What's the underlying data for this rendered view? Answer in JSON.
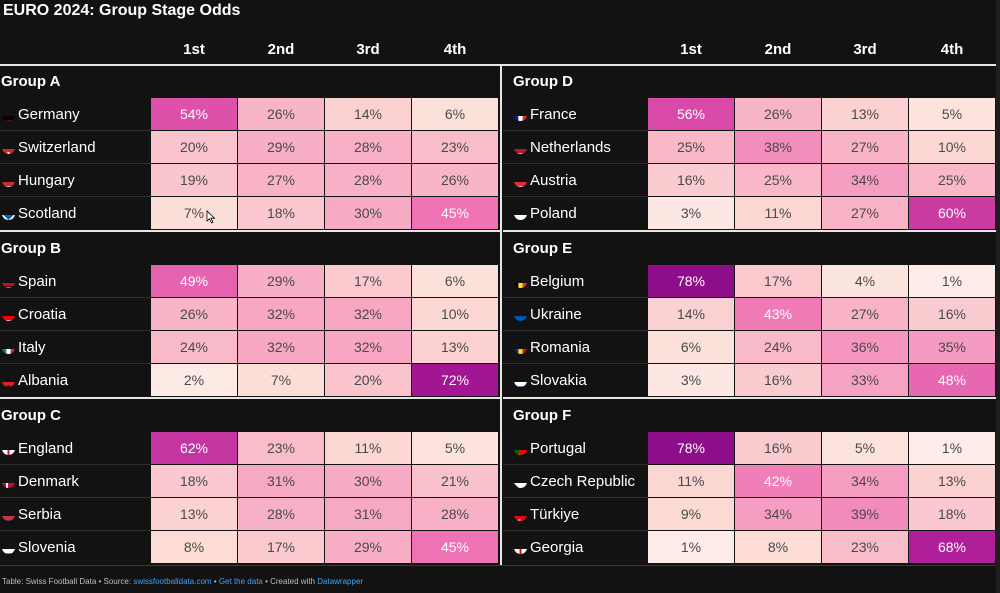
{
  "title": "EURO 2024: Group Stage Odds",
  "columns": [
    "1st",
    "2nd",
    "3rd",
    "4th"
  ],
  "footer": {
    "prefix": "Table: Swiss Football Data • Source: ",
    "source": "swissfootballdata.com",
    "sep1": " • ",
    "get_data": "Get the data",
    "sep2": " • Created with ",
    "tool": "Datawrapper"
  },
  "chart_data": {
    "type": "table",
    "title": "EURO 2024: Group Stage Odds",
    "value_unit": "%",
    "columns": [
      "1st",
      "2nd",
      "3rd",
      "4th"
    ],
    "groups": [
      {
        "name": "Group A",
        "rows": [
          {
            "country": "Germany",
            "values": [
              54,
              26,
              14,
              6
            ]
          },
          {
            "country": "Switzerland",
            "values": [
              20,
              29,
              28,
              23
            ]
          },
          {
            "country": "Hungary",
            "values": [
              19,
              27,
              28,
              26
            ]
          },
          {
            "country": "Scotland",
            "values": [
              7,
              18,
              30,
              45
            ]
          }
        ]
      },
      {
        "name": "Group B",
        "rows": [
          {
            "country": "Spain",
            "values": [
              49,
              29,
              17,
              6
            ]
          },
          {
            "country": "Croatia",
            "values": [
              26,
              32,
              32,
              10
            ]
          },
          {
            "country": "Italy",
            "values": [
              24,
              32,
              32,
              13
            ]
          },
          {
            "country": "Albania",
            "values": [
              2,
              7,
              20,
              72
            ]
          }
        ]
      },
      {
        "name": "Group C",
        "rows": [
          {
            "country": "England",
            "values": [
              62,
              23,
              11,
              5
            ]
          },
          {
            "country": "Denmark",
            "values": [
              18,
              31,
              30,
              21
            ]
          },
          {
            "country": "Serbia",
            "values": [
              13,
              28,
              31,
              28
            ]
          },
          {
            "country": "Slovenia",
            "values": [
              8,
              17,
              29,
              45
            ]
          }
        ]
      },
      {
        "name": "Group D",
        "rows": [
          {
            "country": "France",
            "values": [
              56,
              26,
              13,
              5
            ]
          },
          {
            "country": "Netherlands",
            "values": [
              25,
              38,
              27,
              10
            ]
          },
          {
            "country": "Austria",
            "values": [
              16,
              25,
              34,
              25
            ]
          },
          {
            "country": "Poland",
            "values": [
              3,
              11,
              27,
              60
            ]
          }
        ]
      },
      {
        "name": "Group E",
        "rows": [
          {
            "country": "Belgium",
            "values": [
              78,
              17,
              4,
              1
            ]
          },
          {
            "country": "Ukraine",
            "values": [
              14,
              43,
              27,
              16
            ]
          },
          {
            "country": "Romania",
            "values": [
              6,
              24,
              36,
              35
            ]
          },
          {
            "country": "Slovakia",
            "values": [
              3,
              16,
              33,
              48
            ]
          }
        ]
      },
      {
        "name": "Group F",
        "rows": [
          {
            "country": "Portugal",
            "values": [
              78,
              16,
              5,
              1
            ]
          },
          {
            "country": "Czech Republic",
            "values": [
              11,
              42,
              34,
              13
            ]
          },
          {
            "country": "Türkiye",
            "values": [
              9,
              34,
              39,
              18
            ]
          },
          {
            "country": "Georgia",
            "values": [
              1,
              8,
              23,
              68
            ]
          }
        ]
      }
    ]
  },
  "flags": {
    "Germany": [
      "#000000",
      "#dd0000",
      "#ffce00"
    ],
    "Switzerland": [
      "#d52b1e",
      "#ffffff"
    ],
    "Hungary": [
      "#ce2939",
      "#ffffff",
      "#477050"
    ],
    "Scotland": [
      "#0065bd",
      "#ffffff"
    ],
    "Spain": [
      "#c60b1e",
      "#ffc400",
      "#c60b1e"
    ],
    "Croatia": [
      "#ff0000",
      "#ffffff",
      "#171796"
    ],
    "Italy": [
      "#009246",
      "#ffffff",
      "#ce2b37"
    ],
    "Albania": [
      "#e41e20",
      "#000000"
    ],
    "England": [
      "#ffffff",
      "#ce1124"
    ],
    "Denmark": [
      "#c60c30",
      "#ffffff"
    ],
    "Serbia": [
      "#c6363c",
      "#0c4076",
      "#ffffff"
    ],
    "Slovenia": [
      "#ffffff",
      "#005da4",
      "#ed1c24"
    ],
    "France": [
      "#002395",
      "#ffffff",
      "#ed2939"
    ],
    "Netherlands": [
      "#ae1c28",
      "#ffffff",
      "#21468b"
    ],
    "Austria": [
      "#ed2939",
      "#ffffff",
      "#ed2939"
    ],
    "Poland": [
      "#ffffff",
      "#dc143c"
    ],
    "Belgium": [
      "#000000",
      "#fdda24",
      "#ef3340"
    ],
    "Ukraine": [
      "#0057b7",
      "#ffd700"
    ],
    "Romania": [
      "#002b7f",
      "#fcd116",
      "#ce1126"
    ],
    "Slovakia": [
      "#ffffff",
      "#0b4ea2",
      "#ee1c25"
    ],
    "Portugal": [
      "#006600",
      "#ff0000"
    ],
    "Czech Republic": [
      "#ffffff",
      "#d7141a",
      "#11457e"
    ],
    "Türkiye": [
      "#e30a17",
      "#ffffff"
    ],
    "Georgia": [
      "#ffffff",
      "#ff0000"
    ]
  },
  "colors": {
    "background": "#121212",
    "divider": "#e6e6e6",
    "scale_low": "#fce8e4",
    "scale_mid": "#f289b7",
    "scale_high": "#8a0a86"
  }
}
